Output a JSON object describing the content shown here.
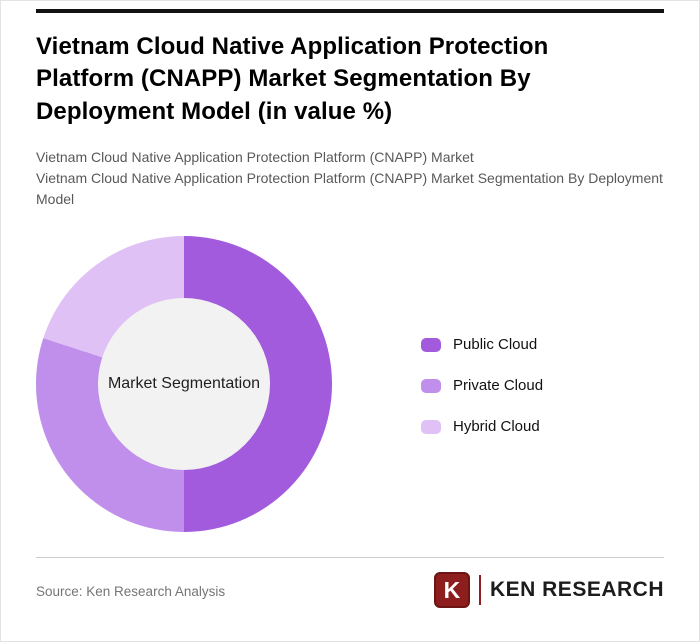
{
  "header": {
    "title": "Vietnam Cloud Native Application Protection Platform (CNAPP) Market Segmentation By Deployment Model (in value %)",
    "subtitle_line1": "Vietnam Cloud Native Application Protection Platform (CNAPP) Market",
    "subtitle_line2": "Vietnam Cloud Native Application Protection Platform (CNAPP) Market Segmentation By Deployment Model"
  },
  "chart_data": {
    "type": "pie",
    "donut": true,
    "title": "Vietnam Cloud Native Application Protection Platform (CNAPP) Market Segmentation By Deployment Model (in value %)",
    "center_label": "Market Segmentation",
    "unit": "%",
    "start_angle_deg": 0,
    "legend_position": "right",
    "segments": [
      {
        "label": "Public Cloud",
        "value": 50,
        "color": "#a25bdc"
      },
      {
        "label": "Private Cloud",
        "value": 30,
        "color": "#c08eeb"
      },
      {
        "label": "Hybrid Cloud",
        "value": 20,
        "color": "#e0c1f5"
      }
    ],
    "hole_color": "#f2f2f2"
  },
  "footer": {
    "source": "Source: Ken Research Analysis",
    "logo": {
      "letter": "K",
      "brand": "KEN RESEARCH",
      "color": "#8e1d1d"
    }
  }
}
